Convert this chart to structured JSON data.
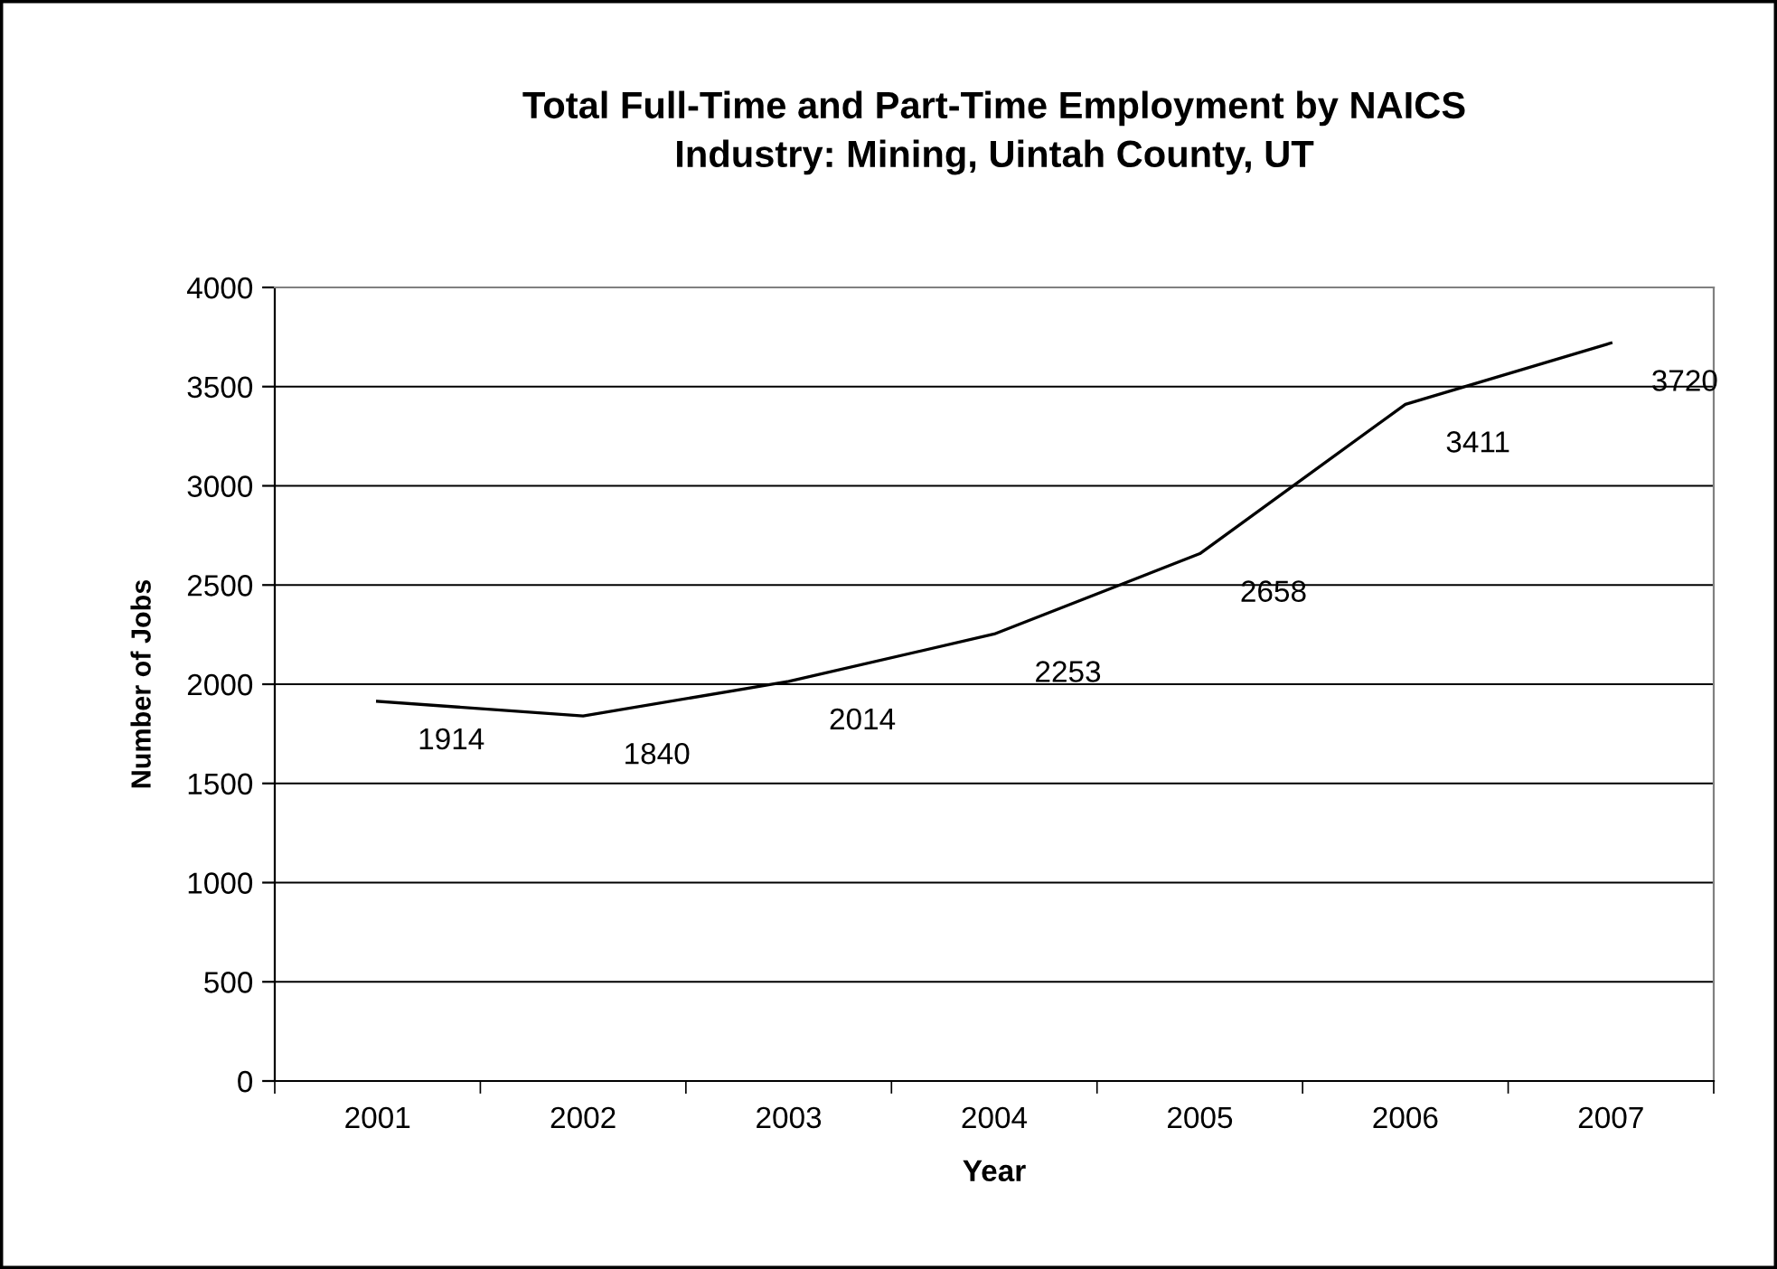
{
  "chart_data": {
    "type": "line",
    "title": "Total Full-Time and Part-Time Employment by NAICS\nIndustry: Mining, Uintah County, UT",
    "xlabel": "Year",
    "ylabel": "Number of Jobs",
    "categories": [
      "2001",
      "2002",
      "2003",
      "2004",
      "2005",
      "2006",
      "2007"
    ],
    "series": [
      {
        "color": "#000000",
        "values": [
          1914,
          1840,
          2014,
          2253,
          2658,
          3411,
          3720
        ]
      }
    ],
    "ylim": [
      0,
      4000
    ],
    "yticks": [
      0,
      500,
      1000,
      1500,
      2000,
      2500,
      3000,
      3500,
      4000
    ],
    "grid": "y",
    "legend": false,
    "marker": "none",
    "line_style": "solid",
    "data_labels": true
  }
}
